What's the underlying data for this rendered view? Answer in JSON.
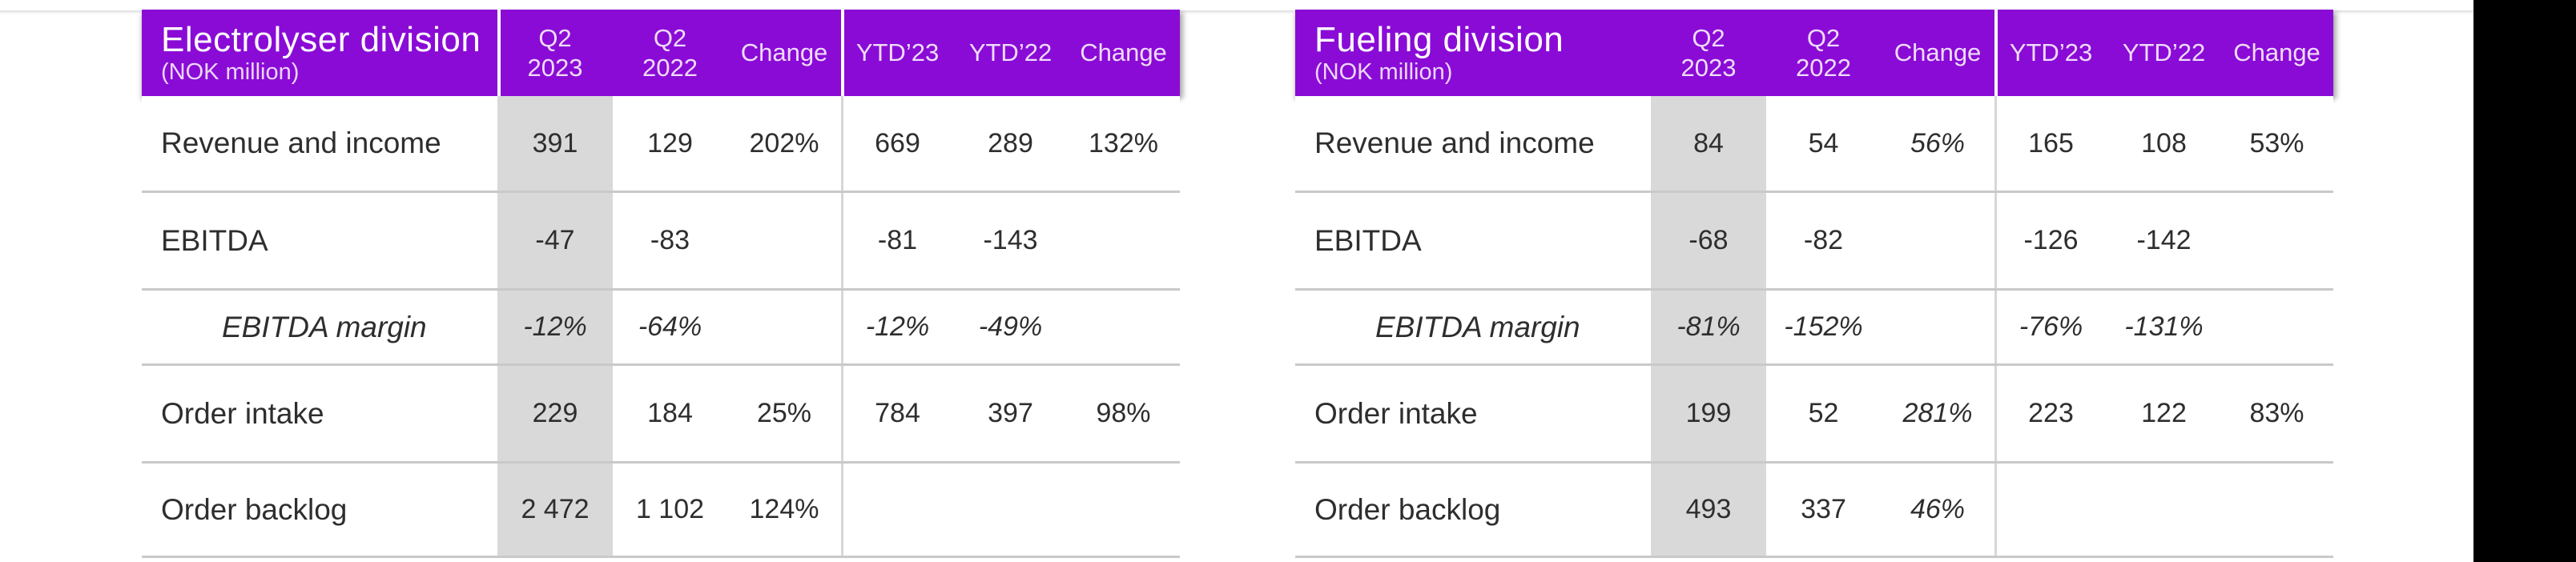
{
  "page": {
    "background_color": "#ffffff",
    "accent_purple": "#8a0bd6",
    "column_highlight_gray": "#d9d9d9",
    "right_band_color": "#000000"
  },
  "tables": [
    {
      "title": "Electrolyser division",
      "subtitle": "(NOK million)",
      "columns": [
        "Q2\n2023",
        "Q2\n2022",
        "Change",
        "YTD’23",
        "YTD’22",
        "Change"
      ],
      "rows": [
        {
          "label": "Revenue and income",
          "values": [
            "391",
            "129",
            "202%",
            "669",
            "289",
            "132%"
          ]
        },
        {
          "label": "EBITDA",
          "values": [
            "-47",
            "-83",
            "",
            "-81",
            "-143",
            ""
          ]
        },
        {
          "label": "EBITDA margin",
          "values": [
            "-12%",
            "-64%",
            "",
            "-12%",
            "-49%",
            ""
          ]
        },
        {
          "label": "Order intake",
          "values": [
            "229",
            "184",
            "25%",
            "784",
            "397",
            "98%"
          ]
        },
        {
          "label": "Order backlog",
          "values": [
            "2 472",
            "1 102",
            "124%",
            "",
            "",
            ""
          ]
        }
      ]
    },
    {
      "title": "Fueling division",
      "subtitle": "(NOK million)",
      "columns": [
        "Q2\n2023",
        "Q2\n2022",
        "Change",
        "YTD’23",
        "YTD’22",
        "Change"
      ],
      "rows": [
        {
          "label": "Revenue and income",
          "values": [
            "84",
            "54",
            "56%",
            "165",
            "108",
            "53%"
          ]
        },
        {
          "label": "EBITDA",
          "values": [
            "-68",
            "-82",
            "",
            "-126",
            "-142",
            ""
          ]
        },
        {
          "label": "EBITDA margin",
          "values": [
            "-81%",
            "-152%",
            "",
            "-76%",
            "-131%",
            ""
          ]
        },
        {
          "label": "Order intake",
          "values": [
            "199",
            "52",
            "281%",
            "223",
            "122",
            "83%"
          ]
        },
        {
          "label": "Order backlog",
          "values": [
            "493",
            "337",
            "46%",
            "",
            "",
            ""
          ]
        }
      ]
    }
  ]
}
